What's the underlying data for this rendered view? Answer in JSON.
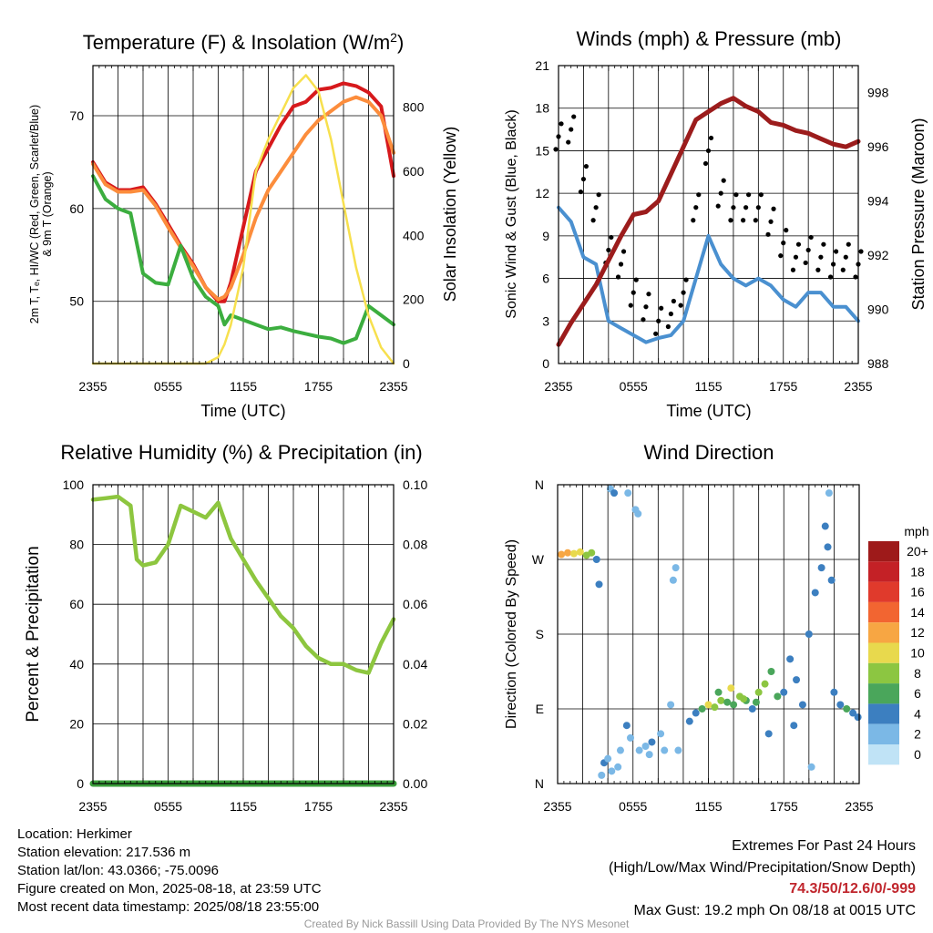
{
  "time_ticks": [
    "2355",
    "0555",
    "1155",
    "1755",
    "2355"
  ],
  "time_label": "Time (UTC)",
  "chart_data": [
    {
      "type": "line",
      "title": "Temperature (F) & Insolation (W/m²)",
      "title_main": "Temperature (F) & Insolation (W/m",
      "title_sup": "2",
      "title_end": ")",
      "xlabel": "Time (UTC)",
      "ylabel_line1": "2m T, Tₑ, HI/WC (Red, Green, Scarlet/Blue)",
      "ylabel_line2": "& 9m T (Orange)",
      "y2label": "Solar Insolation (Yellow)",
      "ylim": [
        43.3,
        75.4
      ],
      "y2lim": [
        0,
        930
      ],
      "yticks": [
        50,
        60,
        70
      ],
      "y2ticks": [
        0,
        200,
        400,
        600,
        800
      ],
      "x_hours": [
        0,
        1,
        2,
        3,
        4,
        5,
        6,
        7,
        8,
        9,
        10,
        10.5,
        11,
        12,
        13,
        14,
        15,
        16,
        17,
        18,
        19,
        20,
        21,
        22,
        23,
        24
      ],
      "series": [
        {
          "key": "temp_2m",
          "color": "#d7191c",
          "values": [
            65,
            62.8,
            62,
            62,
            62.3,
            60.5,
            58.3,
            56,
            54,
            51.5,
            50,
            50,
            52,
            58,
            64,
            66.5,
            69,
            71,
            71.5,
            72.8,
            73,
            73.5,
            73.2,
            72.5,
            71,
            63.5
          ]
        },
        {
          "key": "temp_9m",
          "color": "#fc8d3c",
          "values": [
            64.8,
            62.6,
            61.8,
            61.8,
            62,
            60.3,
            58,
            55.8,
            53.8,
            51.5,
            50.2,
            50.5,
            51.5,
            55,
            59,
            62,
            64,
            66,
            68,
            69.5,
            70.5,
            71.5,
            72,
            71.5,
            70,
            66
          ]
        },
        {
          "key": "dewpoint",
          "color": "#3cae3f",
          "values": [
            63.5,
            61,
            60,
            59.5,
            53,
            52,
            51.8,
            56,
            52.5,
            50.5,
            49.5,
            47.5,
            48.5,
            48,
            47.5,
            47,
            47.2,
            46.8,
            46.5,
            46.2,
            46,
            45.5,
            46,
            49.5,
            48.5,
            47.5
          ]
        },
        {
          "key": "insolation",
          "color": "#f7e04e",
          "axis": "right",
          "values": [
            0,
            0,
            0,
            0,
            0,
            0,
            0,
            0,
            0,
            0,
            20,
            60,
            120,
            300,
            600,
            700,
            780,
            860,
            900,
            850,
            700,
            500,
            300,
            150,
            50,
            0
          ]
        }
      ]
    },
    {
      "type": "line",
      "title": "Winds (mph) & Pressure (mb)",
      "xlabel": "Time (UTC)",
      "ylabel": "Sonic Wind & Gust (Blue, Black)",
      "y2label": "Station Pressure (Maroon)",
      "ylim": [
        0,
        21
      ],
      "y2lim": [
        988,
        999
      ],
      "yticks": [
        0,
        3,
        6,
        9,
        12,
        15,
        18,
        21
      ],
      "y2ticks": [
        988,
        990,
        992,
        994,
        996,
        998
      ],
      "x_hours": [
        0,
        1,
        2,
        3,
        4,
        5,
        6,
        7,
        8,
        9,
        10,
        11,
        12,
        13,
        14,
        15,
        16,
        17,
        18,
        19,
        20,
        21,
        22,
        23,
        24
      ],
      "series": [
        {
          "key": "wind",
          "color": "#4a90d0",
          "values": [
            11,
            10,
            7.5,
            7,
            3,
            2.5,
            2,
            1.5,
            1.8,
            2,
            3,
            6,
            9,
            7,
            6,
            5.5,
            6,
            5.5,
            4.5,
            4,
            5,
            5,
            4,
            4,
            3
          ]
        },
        {
          "key": "gust_points",
          "color": "#000000",
          "values": [
            16,
            16.5,
            13,
            11,
            8,
            7,
            5,
            4,
            3,
            3.5,
            5,
            11,
            15,
            12,
            11,
            11,
            11,
            10,
            8.5,
            7.5,
            8,
            7.5,
            7,
            7.5,
            7
          ]
        },
        {
          "key": "pressure",
          "color": "#9c1c1c",
          "axis": "right",
          "values": [
            988.7,
            989.5,
            990.2,
            990.9,
            991.8,
            992.7,
            993.5,
            993.6,
            994,
            995,
            996,
            997,
            997.3,
            997.6,
            997.8,
            997.5,
            997.3,
            996.9,
            996.8,
            996.6,
            996.5,
            996.3,
            996.1,
            996,
            996.2
          ]
        }
      ]
    },
    {
      "type": "line",
      "title": "Relative Humidity (%) & Precipitation (in)",
      "xlabel": "",
      "ylabel": "Percent & Precipitation",
      "ylim": [
        0,
        100
      ],
      "y2lim": [
        0,
        0.1
      ],
      "yticks": [
        0,
        20,
        40,
        60,
        80,
        100
      ],
      "y2ticks": [
        "0.00",
        "0.02",
        "0.04",
        "0.06",
        "0.08",
        "0.10"
      ],
      "x_hours": [
        0,
        1,
        2,
        3,
        3.5,
        4,
        5,
        6,
        7,
        8,
        9,
        10,
        11,
        12,
        13,
        14,
        15,
        16,
        17,
        18,
        19,
        20,
        21,
        22,
        23,
        24
      ],
      "series": [
        {
          "key": "rh",
          "color": "#8dc63f",
          "values": [
            95,
            95.5,
            96,
            93,
            75,
            73,
            74,
            80,
            93,
            91,
            89,
            94,
            82,
            75,
            68,
            62,
            56,
            52,
            46,
            42,
            40,
            40,
            38,
            37,
            47,
            55
          ]
        },
        {
          "key": "precip",
          "color": "#3a9d3a",
          "axis": "right",
          "values": [
            0,
            0,
            0,
            0,
            0,
            0,
            0,
            0,
            0,
            0,
            0,
            0,
            0,
            0,
            0,
            0,
            0,
            0,
            0,
            0,
            0,
            0,
            0,
            0,
            0,
            0
          ]
        }
      ]
    },
    {
      "type": "scatter",
      "title": "Wind Direction",
      "xlabel": "",
      "ylabel": "Direction (Colored By Speed)",
      "ylim": [
        0,
        360
      ],
      "yticks": [
        "N",
        "E",
        "S",
        "W",
        "N"
      ],
      "colorbar_title": "mph",
      "colorbar_labels": [
        "20+",
        "18",
        "16",
        "14",
        "12",
        "10",
        "8",
        "6",
        "4",
        "2",
        "0"
      ],
      "colorbar_colors": [
        "#9e1a1a",
        "#c42126",
        "#e03a2c",
        "#f26531",
        "#f7a643",
        "#e8d94d",
        "#8cc641",
        "#4aa65b",
        "#3c7fc0",
        "#7bb8e6",
        "#c0e3f6"
      ],
      "points": [
        {
          "t": 0.3,
          "dir": 276,
          "mph": 12
        },
        {
          "t": 0.8,
          "dir": 278,
          "mph": 11
        },
        {
          "t": 1.3,
          "dir": 277,
          "mph": 10
        },
        {
          "t": 1.8,
          "dir": 279,
          "mph": 9
        },
        {
          "t": 2.3,
          "dir": 275,
          "mph": 8
        },
        {
          "t": 2.7,
          "dir": 278,
          "mph": 7
        },
        {
          "t": 3.1,
          "dir": 270,
          "mph": 4
        },
        {
          "t": 3.3,
          "dir": 240,
          "mph": 3
        },
        {
          "t": 4.2,
          "dir": 355,
          "mph": 2
        },
        {
          "t": 4.5,
          "dir": 350,
          "mph": 3
        },
        {
          "t": 5.6,
          "dir": 350,
          "mph": 2
        },
        {
          "t": 6.2,
          "dir": 330,
          "mph": 1
        },
        {
          "t": 6.4,
          "dir": 325,
          "mph": 2
        },
        {
          "t": 3.5,
          "dir": 10,
          "mph": 2
        },
        {
          "t": 3.7,
          "dir": 25,
          "mph": 3
        },
        {
          "t": 4.0,
          "dir": 30,
          "mph": 2
        },
        {
          "t": 4.3,
          "dir": 15,
          "mph": 2
        },
        {
          "t": 4.8,
          "dir": 20,
          "mph": 1
        },
        {
          "t": 5.0,
          "dir": 40,
          "mph": 2
        },
        {
          "t": 5.5,
          "dir": 70,
          "mph": 3
        },
        {
          "t": 5.8,
          "dir": 55,
          "mph": 2
        },
        {
          "t": 6.5,
          "dir": 40,
          "mph": 2
        },
        {
          "t": 7.0,
          "dir": 45,
          "mph": 2
        },
        {
          "t": 7.3,
          "dir": 35,
          "mph": 2
        },
        {
          "t": 7.5,
          "dir": 50,
          "mph": 3
        },
        {
          "t": 8.2,
          "dir": 60,
          "mph": 2
        },
        {
          "t": 8.5,
          "dir": 40,
          "mph": 2
        },
        {
          "t": 9.0,
          "dir": 95,
          "mph": 2
        },
        {
          "t": 9.2,
          "dir": 245,
          "mph": 2
        },
        {
          "t": 9.4,
          "dir": 260,
          "mph": 2
        },
        {
          "t": 9.6,
          "dir": 40,
          "mph": 1
        },
        {
          "t": 10.5,
          "dir": 75,
          "mph": 3
        },
        {
          "t": 11.0,
          "dir": 85,
          "mph": 4
        },
        {
          "t": 11.5,
          "dir": 90,
          "mph": 6
        },
        {
          "t": 12.0,
          "dir": 95,
          "mph": 10
        },
        {
          "t": 12.5,
          "dir": 92,
          "mph": 8
        },
        {
          "t": 13.0,
          "dir": 100,
          "mph": 7
        },
        {
          "t": 13.5,
          "dir": 98,
          "mph": 6
        },
        {
          "t": 14.0,
          "dir": 95,
          "mph": 5
        },
        {
          "t": 14.5,
          "dir": 105,
          "mph": 8
        },
        {
          "t": 15.0,
          "dir": 100,
          "mph": 6
        },
        {
          "t": 15.5,
          "dir": 90,
          "mph": 4
        },
        {
          "t": 16.0,
          "dir": 110,
          "mph": 7
        },
        {
          "t": 16.5,
          "dir": 120,
          "mph": 8
        },
        {
          "t": 17.0,
          "dir": 135,
          "mph": 6
        },
        {
          "t": 17.5,
          "dir": 105,
          "mph": 5
        },
        {
          "t": 18.0,
          "dir": 110,
          "mph": 4
        },
        {
          "t": 18.5,
          "dir": 150,
          "mph": 3
        },
        {
          "t": 19.0,
          "dir": 125,
          "mph": 4
        },
        {
          "t": 19.5,
          "dir": 95,
          "mph": 3
        },
        {
          "t": 20.0,
          "dir": 180,
          "mph": 3
        },
        {
          "t": 20.5,
          "dir": 230,
          "mph": 4
        },
        {
          "t": 21.0,
          "dir": 260,
          "mph": 3
        },
        {
          "t": 21.3,
          "dir": 310,
          "mph": 3
        },
        {
          "t": 21.5,
          "dir": 285,
          "mph": 4
        },
        {
          "t": 21.8,
          "dir": 245,
          "mph": 3
        },
        {
          "t": 22.0,
          "dir": 110,
          "mph": 3
        },
        {
          "t": 22.5,
          "dir": 95,
          "mph": 4
        },
        {
          "t": 23.0,
          "dir": 90,
          "mph": 5
        },
        {
          "t": 23.5,
          "dir": 85,
          "mph": 3
        },
        {
          "t": 23.9,
          "dir": 80,
          "mph": 3
        },
        {
          "t": 16.8,
          "dir": 60,
          "mph": 3
        },
        {
          "t": 18.8,
          "dir": 70,
          "mph": 4
        },
        {
          "t": 20.2,
          "dir": 20,
          "mph": 2
        },
        {
          "t": 21.6,
          "dir": 350,
          "mph": 1
        },
        {
          "t": 12.8,
          "dir": 110,
          "mph": 6
        },
        {
          "t": 13.8,
          "dir": 115,
          "mph": 9
        },
        {
          "t": 14.8,
          "dir": 102,
          "mph": 7
        },
        {
          "t": 15.8,
          "dir": 98,
          "mph": 6
        }
      ]
    }
  ],
  "info": {
    "location": "Location: Herkimer",
    "elevation": "Station elevation: 217.536 m",
    "latlon": "Station lat/lon: 43.0366; -75.0096",
    "created": "Figure created on Mon, 2025-08-18, at 23:59 UTC",
    "recent": "Most recent data timestamp: 2025/08/18 23:55:00"
  },
  "extremes": {
    "title": "Extremes For Past 24 Hours",
    "subtitle": "(High/Low/Max Wind/Precipitation/Snow Depth)",
    "values": "74.3/50/12.6/0/-999",
    "gust": "Max Gust: 19.2 mph On 08/18 at 0015 UTC"
  },
  "credit": "Created By Nick Bassill Using Data Provided By The NYS Mesonet"
}
